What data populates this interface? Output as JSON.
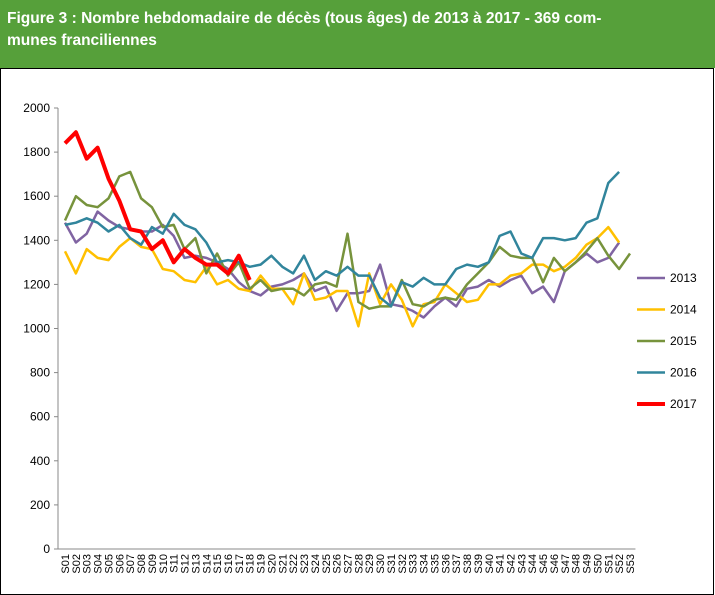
{
  "chart_data": {
    "type": "line",
    "title_lines": [
      "Figure 3 : Nombre hebdomadaire de décès (tous âges) de 2013 à 2017 - 369 com-",
      "munes franciliennes"
    ],
    "categories": [
      "S01",
      "S02",
      "S03",
      "S04",
      "S05",
      "S06",
      "S07",
      "S08",
      "S09",
      "S10",
      "S11",
      "S12",
      "S13",
      "S14",
      "S15",
      "S16",
      "S17",
      "S18",
      "S19",
      "S20",
      "S21",
      "S22",
      "S23",
      "S24",
      "S25",
      "S26",
      "S27",
      "S28",
      "S29",
      "S30",
      "S31",
      "S32",
      "S33",
      "S34",
      "S35",
      "S36",
      "S37",
      "S38",
      "S39",
      "S40",
      "S41",
      "S42",
      "S43",
      "S44",
      "S45",
      "S46",
      "S47",
      "S48",
      "S49",
      "S50",
      "S51",
      "S52",
      "S53"
    ],
    "ylim": [
      0,
      2000
    ],
    "yticks": [
      0,
      200,
      400,
      600,
      800,
      1000,
      1200,
      1400,
      1600,
      1800,
      2000
    ],
    "grid": false,
    "legend": "right",
    "series": [
      {
        "name": "2013",
        "color": "#8064a2",
        "values": [
          1480,
          1390,
          1430,
          1530,
          1490,
          1460,
          1450,
          1440,
          1440,
          1470,
          1420,
          1320,
          1330,
          1320,
          1300,
          1270,
          1210,
          1170,
          1150,
          1190,
          1200,
          1220,
          1250,
          1170,
          1190,
          1080,
          1160,
          1160,
          1170,
          1290,
          1110,
          1100,
          1080,
          1050,
          1100,
          1140,
          1100,
          1180,
          1190,
          1220,
          1190,
          1220,
          1240,
          1160,
          1190,
          1120,
          1260,
          1300,
          1340,
          1300,
          1320,
          1390,
          null
        ]
      },
      {
        "name": "2014",
        "color": "#ffc000",
        "values": [
          1350,
          1250,
          1360,
          1320,
          1310,
          1370,
          1410,
          1370,
          1360,
          1270,
          1260,
          1220,
          1210,
          1280,
          1200,
          1220,
          1180,
          1170,
          1240,
          1180,
          1180,
          1110,
          1250,
          1130,
          1140,
          1170,
          1170,
          1010,
          1250,
          1110,
          1200,
          1130,
          1010,
          1110,
          1120,
          1200,
          1160,
          1120,
          1130,
          1200,
          1200,
          1240,
          1250,
          1290,
          1290,
          1260,
          1280,
          1320,
          1380,
          1410,
          1460,
          1390,
          null
        ]
      },
      {
        "name": "2015",
        "color": "#77933c",
        "values": [
          1490,
          1600,
          1560,
          1550,
          1590,
          1690,
          1710,
          1590,
          1550,
          1460,
          1470,
          1360,
          1410,
          1250,
          1340,
          1240,
          1300,
          1180,
          1220,
          1170,
          1180,
          1180,
          1150,
          1200,
          1210,
          1190,
          1430,
          1120,
          1090,
          1100,
          1100,
          1220,
          1110,
          1100,
          1130,
          1140,
          1130,
          1200,
          1250,
          1300,
          1370,
          1330,
          1320,
          1320,
          1210,
          1320,
          1260,
          1300,
          1350,
          1410,
          1330,
          1270,
          1340
        ]
      },
      {
        "name": "2016",
        "color": "#31859c",
        "values": [
          1470,
          1480,
          1500,
          1480,
          1440,
          1470,
          1410,
          1380,
          1460,
          1430,
          1520,
          1470,
          1450,
          1390,
          1300,
          1310,
          1300,
          1280,
          1290,
          1330,
          1280,
          1250,
          1330,
          1220,
          1260,
          1240,
          1280,
          1240,
          1240,
          1140,
          1100,
          1210,
          1190,
          1230,
          1200,
          1200,
          1270,
          1290,
          1280,
          1300,
          1420,
          1440,
          1340,
          1320,
          1410,
          1410,
          1400,
          1410,
          1480,
          1500,
          1660,
          1710,
          null
        ]
      },
      {
        "name": "2017",
        "color": "#ff0000",
        "values": [
          1840,
          1890,
          1770,
          1820,
          1680,
          1580,
          1450,
          1440,
          1360,
          1400,
          1300,
          1360,
          1320,
          1290,
          1290,
          1250,
          1330,
          1220,
          null,
          null,
          null,
          null,
          null,
          null,
          null,
          null,
          null,
          null,
          null,
          null,
          null,
          null,
          null,
          null,
          null,
          null,
          null,
          null,
          null,
          null,
          null,
          null,
          null,
          null,
          null,
          null,
          null,
          null,
          null,
          null,
          null,
          null,
          null
        ]
      }
    ]
  }
}
